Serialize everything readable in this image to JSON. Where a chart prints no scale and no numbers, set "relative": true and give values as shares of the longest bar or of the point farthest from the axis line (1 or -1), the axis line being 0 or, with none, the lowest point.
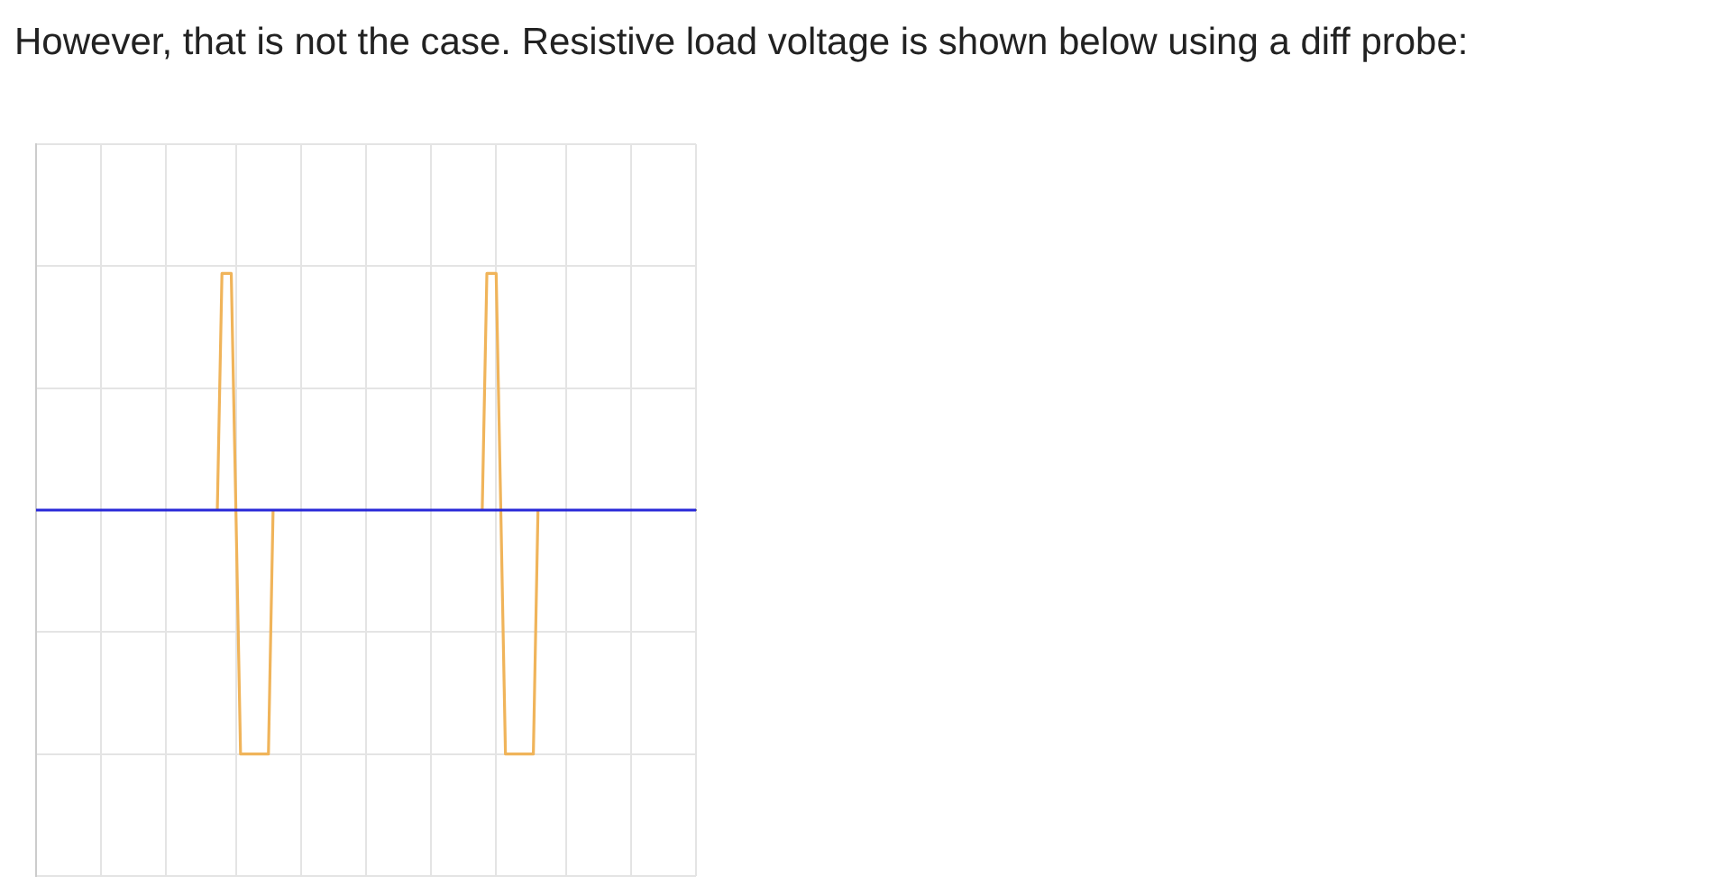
{
  "chart_data": {
    "type": "line",
    "title": "However, that is not the case. Resistive load voltage is shown below using a diff probe:",
    "relative": true,
    "grid": true,
    "legend": false,
    "categories": [
      null,
      null,
      null,
      null,
      null,
      null,
      null,
      null,
      null,
      null,
      null,
      null,
      null,
      null,
      null,
      null,
      null,
      null,
      null,
      null,
      null,
      null,
      null,
      null,
      null,
      null,
      null,
      null,
      null,
      null,
      null,
      null,
      null,
      null,
      null,
      null,
      null,
      null,
      null,
      null,
      null,
      null,
      null,
      null,
      null,
      null,
      null,
      null,
      null,
      null,
      null,
      null,
      null,
      null,
      null,
      null,
      null,
      null,
      null,
      null,
      null,
      null,
      null,
      null,
      null,
      null,
      null,
      null,
      null,
      null,
      null,
      null,
      null,
      null,
      null,
      null,
      null,
      null,
      null,
      null,
      null,
      null,
      null,
      null,
      null,
      null,
      null,
      null,
      null,
      null,
      null,
      null,
      null,
      null,
      null,
      null,
      null,
      null,
      null,
      null,
      null,
      null,
      null,
      null,
      null,
      null,
      null,
      null,
      null,
      null,
      null,
      null,
      null,
      null,
      null,
      null,
      null,
      null,
      null,
      null,
      null,
      null,
      null,
      null,
      null,
      null,
      null,
      null,
      null,
      null,
      null,
      null,
      null,
      null,
      null,
      null,
      null,
      null,
      null,
      null,
      null,
      null,
      null
    ],
    "series": [
      {
        "color": "#f0b45a",
        "values": [
          null,
          null,
          null,
          null,
          null,
          null,
          null,
          null,
          null,
          null,
          null,
          null,
          null,
          null,
          null,
          null,
          null,
          null,
          null,
          null,
          null,
          null,
          null,
          null,
          null,
          null,
          null,
          null,
          null,
          null,
          null,
          null,
          null,
          null,
          null,
          null,
          null,
          null,
          null,
          0,
          0.97,
          0.97,
          0.97,
          0,
          -1,
          -1,
          -1,
          -1,
          -1,
          -1,
          -1,
          0,
          null,
          null,
          null,
          null,
          null,
          null,
          null,
          null,
          null,
          null,
          null,
          null,
          null,
          null,
          null,
          null,
          null,
          null,
          null,
          null,
          null,
          null,
          null,
          null,
          null,
          null,
          null,
          null,
          null,
          null,
          null,
          null,
          null,
          null,
          null,
          null,
          null,
          null,
          null,
          null,
          null,
          null,
          null,
          null,
          0,
          0.97,
          0.97,
          0.97,
          0,
          -1,
          -1,
          -1,
          -1,
          -1,
          -1,
          -1,
          0,
          null,
          null,
          null,
          null,
          null,
          null,
          null,
          null,
          null,
          null,
          null,
          null,
          null,
          null,
          null,
          null,
          null,
          null,
          null,
          null,
          null,
          null,
          null,
          null,
          null,
          null,
          null,
          null,
          null,
          null,
          null,
          null,
          null,
          null
        ]
      },
      {
        "color": "#2828d8",
        "values": [
          0,
          0,
          0,
          0,
          0,
          0,
          0,
          0,
          0,
          0,
          0,
          0,
          0,
          0,
          0,
          0,
          0,
          0,
          0,
          0,
          0,
          0,
          0,
          0,
          0,
          0,
          0,
          0,
          0,
          0,
          0,
          0,
          0,
          0,
          0,
          0,
          0,
          0,
          0,
          0,
          0,
          0,
          0,
          0,
          0,
          0,
          0,
          0,
          0,
          0,
          0,
          0,
          0,
          0,
          0,
          0,
          0,
          0,
          0,
          0,
          0,
          0,
          0,
          0,
          0,
          0,
          0,
          0,
          0,
          0,
          0,
          0,
          0,
          0,
          0,
          0,
          0,
          0,
          0,
          0,
          0,
          0,
          0,
          0,
          0,
          0,
          0,
          0,
          0,
          0,
          0,
          0,
          0,
          0,
          0,
          0,
          0,
          0,
          0,
          0,
          0,
          0,
          0,
          0,
          0,
          0,
          0,
          0,
          0,
          0,
          0,
          0,
          0,
          0,
          0,
          0,
          0,
          0,
          0,
          0,
          0,
          0,
          0,
          0,
          0,
          0,
          0,
          0,
          0,
          0,
          0,
          0,
          0,
          0,
          0,
          0,
          0,
          0,
          0,
          0,
          0,
          0,
          0
        ]
      }
    ]
  }
}
